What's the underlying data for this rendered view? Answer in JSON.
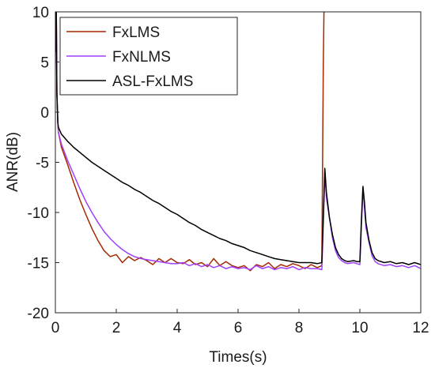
{
  "chart_data": {
    "type": "line",
    "title": "",
    "xlabel": "Times(s)",
    "ylabel": "ANR(dB)",
    "xlim": [
      0,
      12
    ],
    "ylim": [
      -20,
      10
    ],
    "xticks": [
      "0",
      "2",
      "4",
      "6",
      "8",
      "10",
      "12"
    ],
    "yticks": [
      "10",
      "5",
      "0",
      "-5",
      "-10",
      "-15",
      "-20"
    ],
    "grid": false,
    "legend_position": "top-left",
    "series": [
      {
        "name": "FxLMS",
        "color": "#a52a00",
        "x": [
          0,
          0.03,
          0.05,
          0.08,
          0.1,
          0.2,
          0.4,
          0.6,
          0.8,
          1.0,
          1.2,
          1.4,
          1.6,
          1.8,
          2.0,
          2.2,
          2.4,
          2.6,
          2.8,
          3.0,
          3.2,
          3.4,
          3.6,
          3.8,
          4.0,
          4.2,
          4.4,
          4.6,
          4.8,
          5.0,
          5.2,
          5.4,
          5.6,
          5.8,
          6.0,
          6.2,
          6.4,
          6.6,
          6.8,
          7.0,
          7.2,
          7.4,
          7.6,
          7.8,
          8.0,
          8.2,
          8.4,
          8.6,
          8.75,
          8.8,
          8.82,
          8.85
        ],
        "y": [
          6,
          10,
          2,
          -1,
          -2,
          -3.5,
          -5.2,
          -7,
          -8.7,
          -10.2,
          -11.6,
          -12.8,
          -13.8,
          -14.4,
          -14.2,
          -15,
          -14.4,
          -14.8,
          -14.5,
          -14.8,
          -15.2,
          -14.6,
          -15.0,
          -14.6,
          -15.0,
          -15.1,
          -14.7,
          -15.2,
          -15.0,
          -15.4,
          -14.6,
          -15.3,
          -14.9,
          -15.3,
          -15.5,
          -15.3,
          -15.8,
          -15.2,
          -15.4,
          -15.0,
          -15.6,
          -15.2,
          -15.4,
          -15.1,
          -15.3,
          -15.6,
          -15.2,
          -15.5,
          -15.3,
          5,
          10,
          10
        ]
      },
      {
        "name": "FxNLMS",
        "color": "#a040ff",
        "x": [
          0,
          0.03,
          0.05,
          0.08,
          0.1,
          0.2,
          0.4,
          0.6,
          0.8,
          1.0,
          1.2,
          1.4,
          1.6,
          1.8,
          2.0,
          2.2,
          2.4,
          2.6,
          2.8,
          3.0,
          3.2,
          3.4,
          3.6,
          3.8,
          4.0,
          4.2,
          4.4,
          4.6,
          4.8,
          5.0,
          5.2,
          5.4,
          5.6,
          5.8,
          6.0,
          6.2,
          6.4,
          6.6,
          6.8,
          7.0,
          7.2,
          7.4,
          7.6,
          7.8,
          8.0,
          8.2,
          8.4,
          8.6,
          8.75,
          8.8,
          8.85,
          8.9,
          9.0,
          9.1,
          9.2,
          9.3,
          9.4,
          9.5,
          9.6,
          9.8,
          9.9,
          10.0,
          10.05,
          10.1,
          10.15,
          10.2,
          10.3,
          10.4,
          10.5,
          10.6,
          10.8,
          11.0,
          11.2,
          11.4,
          11.6,
          11.8,
          12.0
        ],
        "y": [
          6,
          10,
          2,
          -1,
          -2,
          -3.2,
          -4.8,
          -6.2,
          -7.6,
          -8.9,
          -10.0,
          -11.0,
          -11.9,
          -12.6,
          -13.2,
          -13.7,
          -14.1,
          -14.4,
          -14.6,
          -14.7,
          -14.8,
          -14.9,
          -15.0,
          -15.1,
          -15.1,
          -15.0,
          -15.3,
          -15.1,
          -15.4,
          -15.2,
          -15.5,
          -15.3,
          -15.6,
          -15.4,
          -15.6,
          -15.5,
          -15.7,
          -15.3,
          -15.6,
          -15.4,
          -15.7,
          -15.5,
          -15.6,
          -15.4,
          -15.7,
          -15.5,
          -15.6,
          -15.6,
          -15.7,
          -11,
          -6,
          -8.5,
          -10.5,
          -12.5,
          -13.8,
          -14.5,
          -14.8,
          -15.0,
          -15.1,
          -15.0,
          -15.1,
          -15.2,
          -11.5,
          -7.6,
          -9.5,
          -11.5,
          -13.0,
          -14.3,
          -14.9,
          -15.1,
          -15.3,
          -15.2,
          -15.4,
          -15.3,
          -15.5,
          -15.3,
          -15.6
        ]
      },
      {
        "name": "ASL-FxLMS",
        "color": "#000000",
        "x": [
          0,
          0.03,
          0.05,
          0.08,
          0.1,
          0.2,
          0.4,
          0.6,
          0.8,
          1.0,
          1.2,
          1.4,
          1.6,
          1.8,
          2.0,
          2.2,
          2.4,
          2.6,
          2.8,
          3.0,
          3.2,
          3.4,
          3.6,
          3.8,
          4.0,
          4.2,
          4.4,
          4.6,
          4.8,
          5.0,
          5.2,
          5.4,
          5.6,
          5.8,
          6.0,
          6.2,
          6.4,
          6.6,
          6.8,
          7.0,
          7.2,
          7.4,
          7.6,
          7.8,
          8.0,
          8.2,
          8.4,
          8.6,
          8.75,
          8.8,
          8.85,
          8.9,
          9.0,
          9.1,
          9.2,
          9.3,
          9.4,
          9.5,
          9.6,
          9.8,
          9.9,
          10.0,
          10.05,
          10.1,
          10.15,
          10.2,
          10.3,
          10.4,
          10.5,
          10.6,
          10.8,
          11.0,
          11.2,
          11.4,
          11.6,
          11.8,
          12.0
        ],
        "y": [
          6,
          10,
          2,
          -1,
          -1.5,
          -2.2,
          -2.9,
          -3.5,
          -4.0,
          -4.5,
          -5.0,
          -5.4,
          -5.8,
          -6.2,
          -6.6,
          -7.0,
          -7.3,
          -7.7,
          -8.0,
          -8.4,
          -8.8,
          -9.1,
          -9.5,
          -9.9,
          -10.2,
          -10.6,
          -11.0,
          -11.3,
          -11.7,
          -12.0,
          -12.3,
          -12.6,
          -12.8,
          -13.1,
          -13.3,
          -13.5,
          -13.8,
          -14.0,
          -14.2,
          -14.4,
          -14.6,
          -14.7,
          -14.8,
          -14.9,
          -15.0,
          -15.0,
          -15.0,
          -15.1,
          -15.0,
          -10.5,
          -5.6,
          -8.0,
          -10.5,
          -12.2,
          -13.5,
          -14.2,
          -14.6,
          -14.8,
          -14.9,
          -14.8,
          -14.9,
          -14.9,
          -10.8,
          -7.4,
          -9.0,
          -11.0,
          -12.8,
          -14.0,
          -14.6,
          -14.8,
          -15.0,
          -14.9,
          -15.1,
          -15.0,
          -15.2,
          -15.0,
          -15.2
        ]
      }
    ]
  }
}
